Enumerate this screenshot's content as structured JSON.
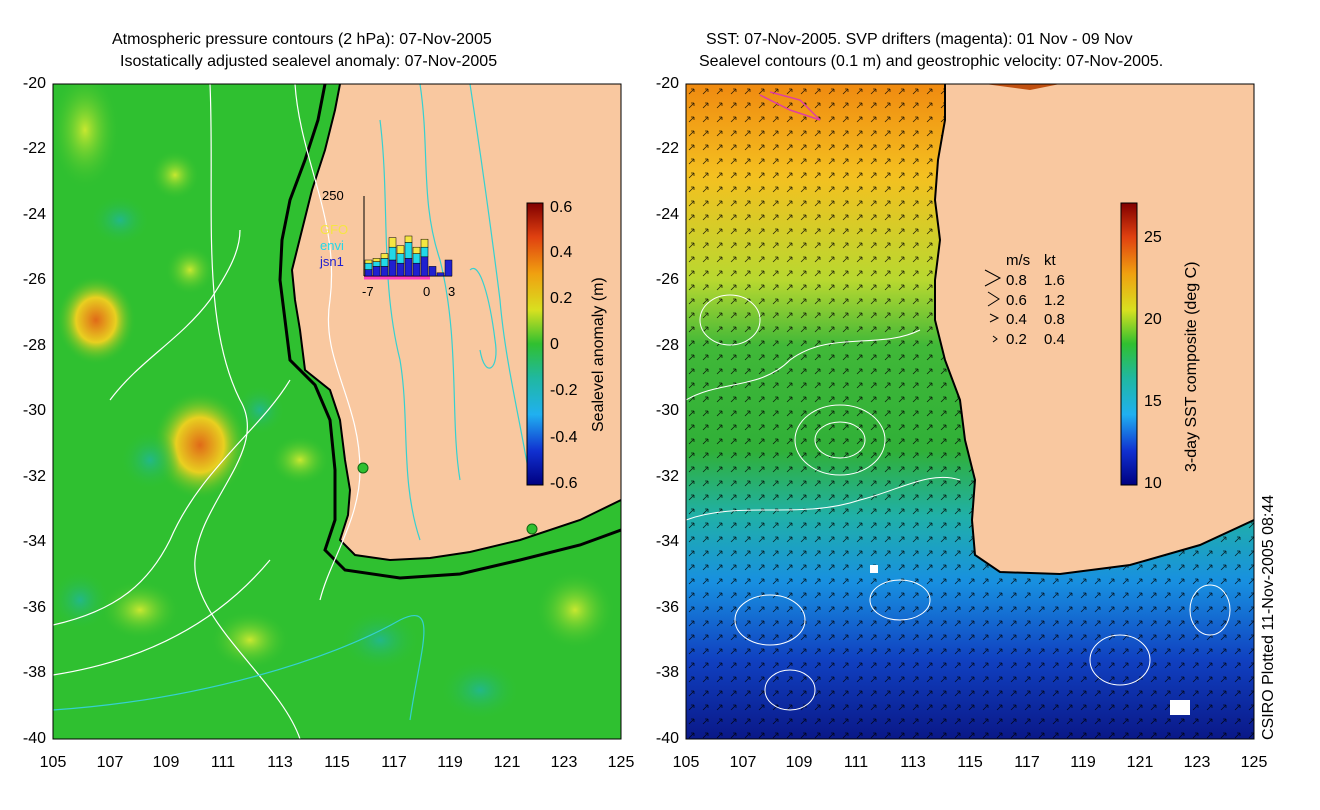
{
  "left_panel": {
    "title_line1": "Atmospheric pressure contours (2 hPa): 07-Nov-2005",
    "title_line2": "Isostatically adjusted sealevel anomaly: 07-Nov-2005",
    "colorbar_label": "Sealevel anomaly (m)",
    "colorbar_ticks": [
      "0.6",
      "0.4",
      "0.2",
      "0",
      "-0.2",
      "-0.4",
      "-0.6"
    ],
    "histogram": {
      "ymax_label": "250",
      "x_ticks": [
        "-7",
        "0",
        "3"
      ],
      "legend": [
        {
          "name": "GFO",
          "color": "#f5e642"
        },
        {
          "name": "envi",
          "color": "#22d8e8"
        },
        {
          "name": "jsn1",
          "color": "#2020d0"
        }
      ],
      "bars": [
        {
          "gfo": 10,
          "envi": 20,
          "jsn1": 20
        },
        {
          "gfo": 10,
          "envi": 15,
          "jsn1": 30
        },
        {
          "gfo": 15,
          "envi": 25,
          "jsn1": 30
        },
        {
          "gfo": 30,
          "envi": 40,
          "jsn1": 50
        },
        {
          "gfo": 25,
          "envi": 30,
          "jsn1": 40
        },
        {
          "gfo": 20,
          "envi": 50,
          "jsn1": 55
        },
        {
          "gfo": 20,
          "envi": 30,
          "jsn1": 40
        },
        {
          "gfo": 25,
          "envi": 30,
          "jsn1": 60
        },
        {
          "gfo": 0,
          "envi": 0,
          "jsn1": 30
        },
        {
          "gfo": 0,
          "envi": 0,
          "jsn1": 10
        },
        {
          "gfo": 0,
          "envi": 0,
          "jsn1": 50
        }
      ]
    }
  },
  "right_panel": {
    "title_line1": "SST: 07-Nov-2005. SVP drifters (magenta): 01 Nov - 09 Nov",
    "title_line2": "Sealevel contours (0.1 m) and geostrophic velocity: 07-Nov-2005.",
    "colorbar_label": "3-day SST composite (deg C)",
    "colorbar_ticks": [
      "25",
      "20",
      "15",
      "10"
    ],
    "velocity_legend": {
      "header_ms": "m/s",
      "header_kt": "kt",
      "rows": [
        {
          "ms": "0.8",
          "kt": "1.6"
        },
        {
          "ms": "0.6",
          "kt": "1.2"
        },
        {
          "ms": "0.4",
          "kt": "0.8"
        },
        {
          "ms": "0.2",
          "kt": "0.4"
        }
      ]
    }
  },
  "axes": {
    "y_ticks": [
      "-20",
      "-22",
      "-24",
      "-26",
      "-28",
      "-30",
      "-32",
      "-34",
      "-36",
      "-38",
      "-40"
    ],
    "x_ticks": [
      "105",
      "107",
      "109",
      "111",
      "113",
      "115",
      "117",
      "119",
      "121",
      "123",
      "125"
    ]
  },
  "credit": "CSIRO Plotted 11-Nov-2005 08:44",
  "colors": {
    "land": "#f9c8a0",
    "ocean_left": "#2fc030",
    "coast": "#000000",
    "contour_pressure": "#ffffff",
    "contour_cyan": "#36d0d0",
    "drifters": "#e040a0"
  }
}
